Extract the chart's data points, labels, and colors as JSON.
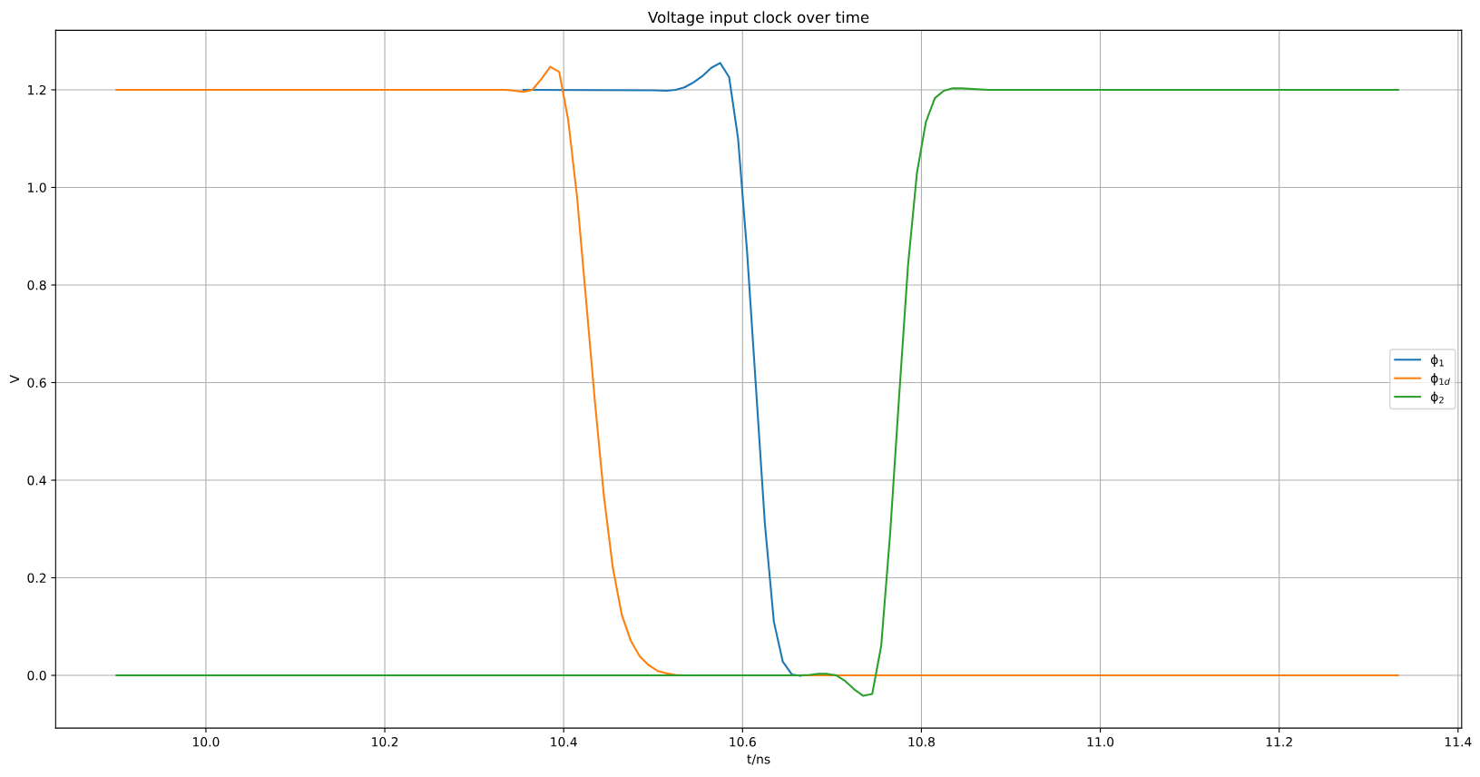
{
  "chart_data": {
    "type": "line",
    "title": "Voltage input clock over time",
    "xlabel": "t/ns",
    "ylabel": "V",
    "xlim": [
      9.832,
      11.404
    ],
    "xticks": [
      {
        "value": 10.0,
        "label": "10.0"
      },
      {
        "value": 10.2,
        "label": "10.2"
      },
      {
        "value": 10.4,
        "label": "10.4"
      },
      {
        "value": 10.6,
        "label": "10.6"
      },
      {
        "value": 10.8,
        "label": "10.8"
      },
      {
        "value": 11.0,
        "label": "11.0"
      },
      {
        "value": 11.2,
        "label": "11.2"
      },
      {
        "value": 11.4,
        "label": "11.4"
      }
    ],
    "ylim": [
      -0.108,
      1.322
    ],
    "yticks": [
      {
        "value": 0.0,
        "label": "0.0"
      },
      {
        "value": 0.2,
        "label": "0.2"
      },
      {
        "value": 0.4,
        "label": "0.4"
      },
      {
        "value": 0.6,
        "label": "0.6"
      },
      {
        "value": 0.8,
        "label": "0.8"
      },
      {
        "value": 1.0,
        "label": "1.0"
      },
      {
        "value": 1.2,
        "label": "1.2"
      }
    ],
    "grid": true,
    "legend": "right",
    "marker": "none",
    "line_style": "solid",
    "series": [
      {
        "name": "ϕ$_{1}$",
        "color": "#1f77b4",
        "x": [
          10.355,
          10.5,
          10.515,
          10.525,
          10.535,
          10.545,
          10.555,
          10.565,
          10.575,
          10.585,
          10.595,
          10.605,
          10.615,
          10.625,
          10.635,
          10.645,
          10.655,
          10.665
        ],
        "values": [
          1.2,
          1.199,
          1.198,
          1.2,
          1.205,
          1.215,
          1.228,
          1.245,
          1.255,
          1.226,
          1.1,
          0.87,
          0.59,
          0.31,
          0.11,
          0.028,
          0.002,
          -0.001
        ]
      },
      {
        "name": "ϕ$_{1d}$",
        "color": "#ff7f0e",
        "x": [
          9.9,
          10.335,
          10.345,
          10.355,
          10.365,
          10.375,
          10.385,
          10.395,
          10.405,
          10.415,
          10.425,
          10.435,
          10.445,
          10.455,
          10.465,
          10.475,
          10.485,
          10.495,
          10.505,
          10.515,
          10.525,
          10.535,
          11.333
        ],
        "values": [
          1.2,
          1.2,
          1.198,
          1.196,
          1.2,
          1.222,
          1.247,
          1.237,
          1.139,
          0.98,
          0.77,
          0.56,
          0.367,
          0.22,
          0.124,
          0.071,
          0.039,
          0.021,
          0.009,
          0.004,
          0.001,
          0,
          0
        ]
      },
      {
        "name": "ϕ$_{2}$",
        "color": "#2ca02c",
        "x": [
          9.9,
          10.665,
          10.675,
          10.685,
          10.695,
          10.705,
          10.715,
          10.725,
          10.735,
          10.745,
          10.755,
          10.765,
          10.775,
          10.785,
          10.795,
          10.805,
          10.815,
          10.825,
          10.835,
          10.845,
          10.875,
          11.333
        ],
        "values": [
          0,
          0,
          0.001,
          0.003,
          0.003,
          0,
          -0.012,
          -0.029,
          -0.042,
          -0.038,
          0.06,
          0.29,
          0.57,
          0.84,
          1.03,
          1.134,
          1.183,
          1.198,
          1.203,
          1.203,
          1.2,
          1.2
        ]
      }
    ]
  }
}
